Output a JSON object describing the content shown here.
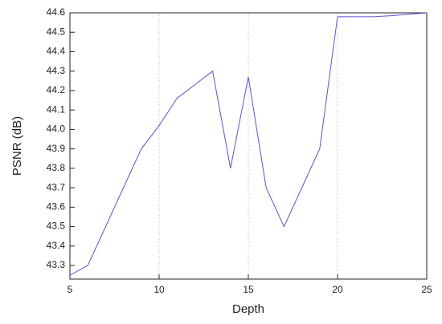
{
  "chart_data": {
    "type": "line",
    "x_label": "Depth",
    "y_label": "PSNR (dB)",
    "x": [
      5,
      6,
      9,
      10,
      11,
      13,
      14,
      15,
      16,
      17,
      19,
      20,
      22,
      23,
      25
    ],
    "series": [
      {
        "name": "PSNR",
        "color": "#5555cc",
        "values": [
          43.25,
          43.3,
          43.9,
          44.02,
          44.16,
          44.3,
          43.8,
          44.27,
          43.7,
          43.5,
          43.9,
          44.58,
          44.58,
          44.585,
          44.6
        ]
      }
    ],
    "xlim": [
      5,
      25
    ],
    "xticks": [
      5,
      10,
      15,
      20,
      25
    ],
    "ylim": [
      43.23,
      44.6
    ],
    "yticks": [
      43.3,
      43.4,
      43.5,
      43.6,
      43.7,
      43.8,
      43.9,
      {
        "value": 44,
        "label": "44.0"
      },
      44.1,
      44.2,
      44.3,
      44.4,
      44.5,
      44.6
    ],
    "grid": "x"
  }
}
